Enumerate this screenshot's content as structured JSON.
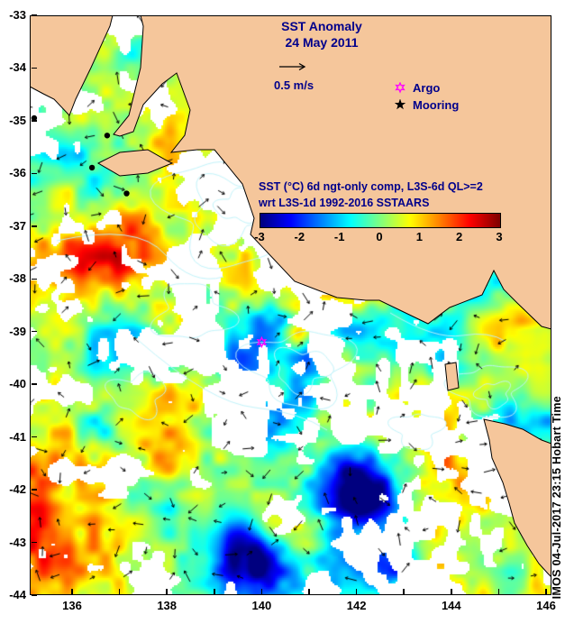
{
  "title": {
    "line1": "SST Anomaly",
    "line2": "24 May 2011"
  },
  "velocity_scale": {
    "label": "0.5 m/s"
  },
  "legend": {
    "argo_label": "Argo",
    "mooring_label": "Mooring"
  },
  "colorbar": {
    "caption_line1": "SST (°C) 6d ngt-only comp, L3S-6d QL>=2",
    "caption_line2": "wrt L3S-1d 1992-2016 SSTAARS",
    "tick_labels": [
      "-3",
      "-2",
      "-1",
      "0",
      "1",
      "2",
      "3"
    ]
  },
  "watermark": "IMOS 04-Jul-2017 23:15 Hobart Time",
  "axes": {
    "y_tick_labels": [
      "-33",
      "-34",
      "-35",
      "-36",
      "-37",
      "-38",
      "-39",
      "-40",
      "-41",
      "-42",
      "-43",
      "-44"
    ],
    "x_tick_labels": [
      "136",
      "138",
      "140",
      "142",
      "144",
      "146"
    ]
  },
  "colors": {
    "land": "#f5c69b",
    "coast": "#000000",
    "heading_text": "#00008b",
    "tick_text": "#000000",
    "argo": "#ff00ff",
    "mooring": "#000000",
    "contour": "rgba(190,242,250,0.95)"
  },
  "chart_data": {
    "type": "heatmap",
    "title": "SST Anomaly",
    "subtitle": "24 May 2011",
    "x_axis": {
      "ticks": [
        136,
        138,
        140,
        142,
        144,
        146
      ],
      "range_lon_east": [
        135.1,
        146.1
      ]
    },
    "y_axis": {
      "ticks": [
        -33,
        -34,
        -35,
        -36,
        -37,
        -38,
        -39,
        -40,
        -41,
        -42,
        -43,
        -44
      ],
      "range_lat": [
        -44,
        -33
      ]
    },
    "colorbar": {
      "label": "SST (°C) 6d ngt-only comp, L3S-6d QL>=2 wrt L3S-1d 1992-2016 SSTAARS",
      "ticks": [
        -3,
        -2,
        -1,
        0,
        1,
        2,
        3
      ],
      "range_degC": [
        -3,
        3
      ],
      "colormap": "jet"
    },
    "vector_reference_m_per_s": 0.5,
    "markers": {
      "argo": [
        {
          "lon": 140.0,
          "lat": -39.2
        }
      ],
      "moorings": [
        {
          "lon": 135.2,
          "lat": -34.95
        },
        {
          "lon": 136.74,
          "lat": -35.28
        },
        {
          "lon": 136.42,
          "lat": -35.89
        },
        {
          "lon": 137.15,
          "lat": -36.38
        }
      ]
    },
    "annotation": "IMOS 04-Jul-2017 23:15 Hobart Time"
  }
}
